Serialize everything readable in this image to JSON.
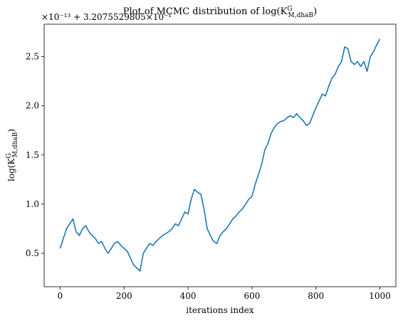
{
  "chart_data": {
    "type": "line",
    "title": "Plot of MCMC distribution of log(K",
    "title_sup": "G",
    "title_sub": "M,dhaB",
    "title_end": ")",
    "offset_text": "×10⁻¹³ + 3.2075529805×10⁻¹",
    "xlabel": "iterations index",
    "ylabel": "log(K",
    "ylabel_sup": "G",
    "ylabel_sub": "M,dhaB",
    "ylabel_end": ")",
    "x": [
      0,
      10,
      20,
      30,
      40,
      50,
      60,
      70,
      80,
      90,
      100,
      110,
      120,
      130,
      140,
      150,
      160,
      170,
      180,
      190,
      200,
      210,
      220,
      230,
      240,
      250,
      260,
      270,
      280,
      290,
      300,
      310,
      320,
      330,
      340,
      350,
      360,
      370,
      380,
      390,
      400,
      410,
      420,
      430,
      440,
      450,
      460,
      470,
      480,
      490,
      500,
      510,
      520,
      530,
      540,
      550,
      560,
      570,
      580,
      590,
      600,
      610,
      620,
      630,
      640,
      650,
      660,
      670,
      680,
      690,
      700,
      710,
      720,
      730,
      740,
      750,
      760,
      770,
      780,
      790,
      800,
      810,
      820,
      830,
      840,
      850,
      860,
      870,
      880,
      890,
      900,
      910,
      920,
      930,
      940,
      950,
      960,
      970,
      980,
      990,
      1000
    ],
    "series": [
      {
        "name": "log(K)",
        "color": "#1f77b4",
        "values": [
          0.55,
          0.65,
          0.75,
          0.8,
          0.85,
          0.72,
          0.68,
          0.75,
          0.78,
          0.72,
          0.68,
          0.65,
          0.6,
          0.62,
          0.55,
          0.5,
          0.55,
          0.6,
          0.62,
          0.58,
          0.55,
          0.52,
          0.45,
          0.38,
          0.35,
          0.32,
          0.5,
          0.55,
          0.6,
          0.58,
          0.62,
          0.65,
          0.68,
          0.7,
          0.72,
          0.75,
          0.8,
          0.78,
          0.85,
          0.92,
          0.9,
          1.05,
          1.15,
          1.12,
          1.1,
          0.95,
          0.75,
          0.68,
          0.62,
          0.6,
          0.68,
          0.72,
          0.75,
          0.8,
          0.85,
          0.88,
          0.92,
          0.95,
          1.0,
          1.05,
          1.08,
          1.2,
          1.3,
          1.4,
          1.55,
          1.62,
          1.72,
          1.78,
          1.82,
          1.84,
          1.85,
          1.88,
          1.9,
          1.88,
          1.92,
          1.88,
          1.85,
          1.8,
          1.82,
          1.9,
          1.98,
          2.05,
          2.12,
          2.1,
          2.2,
          2.28,
          2.32,
          2.4,
          2.45,
          2.6,
          2.58,
          2.45,
          2.42,
          2.45,
          2.4,
          2.45,
          2.35,
          2.5,
          2.55,
          2.62,
          2.68
        ]
      }
    ],
    "xlim": [
      -50,
      1050
    ],
    "xticks": [
      0,
      200,
      400,
      600,
      800,
      1000
    ],
    "ylim": [
      0.16,
      2.83
    ],
    "yticks": [
      0.5,
      {
        "value": 1,
        "label": "1.0"
      },
      1.5,
      {
        "value": 2,
        "label": "2.0"
      },
      2.5
    ],
    "grid": false
  }
}
